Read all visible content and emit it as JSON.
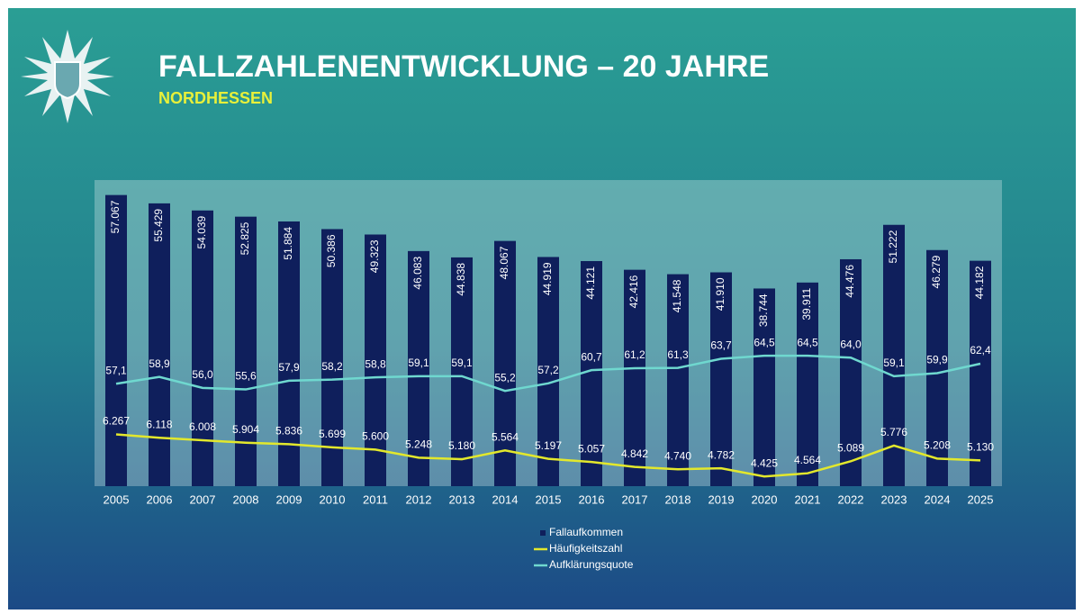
{
  "chart_data": {
    "type": "bar_line",
    "title": "FALLZAHLENENTWICKLUNG – 20 JAHRE",
    "subtitle": "NORDHESSEN",
    "categories": [
      "2005",
      "2006",
      "2007",
      "2008",
      "2009",
      "2010",
      "2011",
      "2012",
      "2013",
      "2014",
      "2015",
      "2016",
      "2017",
      "2018",
      "2019",
      "2020",
      "2021",
      "2022",
      "2023",
      "2024",
      "2025"
    ],
    "ylim": [
      0,
      60000
    ],
    "y2lim": [
      4000,
      17400
    ],
    "y3lim": [
      30,
      111
    ],
    "series": [
      {
        "name": "Fallaufkommen",
        "type": "bar",
        "color": "#0f1f5c",
        "values": [
          57067,
          55429,
          54039,
          52825,
          51884,
          50386,
          49323,
          46083,
          44838,
          48067,
          44919,
          44121,
          42416,
          41548,
          41910,
          38744,
          39911,
          44476,
          51222,
          46279,
          44182
        ],
        "value_labels": [
          "57.067",
          "55.429",
          "54.039",
          "52.825",
          "51.884",
          "50.386",
          "49.323",
          "46.083",
          "44.838",
          "48.067",
          "44.919",
          "44.121",
          "42.416",
          "41.548",
          "41.910",
          "38.744",
          "39.911",
          "44.476",
          "51.222",
          "46.279",
          "44.182"
        ]
      },
      {
        "name": "Häufigkeitszahl",
        "type": "line",
        "axis": "y2",
        "color": "#e3e82c",
        "values": [
          6267,
          6118,
          6008,
          5904,
          5836,
          5699,
          5600,
          5248,
          5180,
          5564,
          5197,
          5057,
          4842,
          4740,
          4782,
          4425,
          4564,
          5089,
          5776,
          5208,
          5130
        ],
        "value_labels": [
          "6.267",
          "6.118",
          "6.008",
          "5.904",
          "5.836",
          "5.699",
          "5.600",
          "5.248",
          "5.180",
          "5.564",
          "5.197",
          "5.057",
          "4.842",
          "4.740",
          "4.782",
          "4.425",
          "4.564",
          "5.089",
          "5.776",
          "5.208",
          "5.130"
        ]
      },
      {
        "name": "Aufklärungsquote",
        "type": "line",
        "axis": "y3",
        "color": "#6fd8cf",
        "values": [
          57.1,
          58.9,
          56.0,
          55.6,
          57.9,
          58.2,
          58.8,
          59.1,
          59.1,
          55.2,
          57.2,
          60.7,
          61.2,
          61.3,
          63.7,
          64.5,
          64.5,
          64.0,
          59.1,
          59.9,
          62.4
        ],
        "value_labels": [
          "57,1",
          "58,9",
          "56,0",
          "55,6",
          "57,9",
          "58,2",
          "58,8",
          "59,1",
          "59,1",
          "55,2",
          "57,2",
          "60,7",
          "61,2",
          "61,3",
          "63,7",
          "64,5",
          "64,5",
          "64,0",
          "59,1",
          "59,9",
          "62,4"
        ]
      }
    ]
  }
}
